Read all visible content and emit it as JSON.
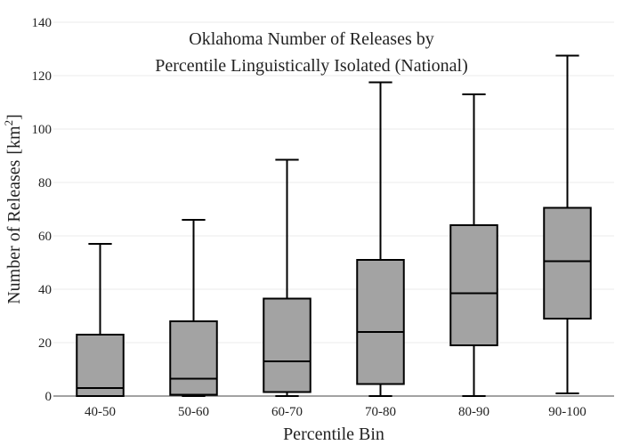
{
  "chart_data": {
    "type": "box",
    "title_line1": "Oklahoma Number of Releases by",
    "title_line2": "Percentile Linguistically Isolated (National)",
    "xlabel": "Percentile Bin",
    "ylabel_main": "Number of Releases",
    "ylabel_unit_prefix": "[km",
    "ylabel_unit_sup": "2",
    "ylabel_unit_suffix": "]",
    "ylim": [
      0,
      140
    ],
    "yticks": [
      0,
      20,
      40,
      60,
      80,
      100,
      120,
      140
    ],
    "grid": true,
    "box_color": "#a3a3a3",
    "categories": [
      "40-50",
      "50-60",
      "60-70",
      "70-80",
      "80-90",
      "90-100"
    ],
    "boxes": [
      {
        "min": 0,
        "q1": 0,
        "median": 3,
        "q3": 23,
        "max": 57
      },
      {
        "min": 0,
        "q1": 0.5,
        "median": 6.5,
        "q3": 28,
        "max": 66
      },
      {
        "min": 0,
        "q1": 1.5,
        "median": 13,
        "q3": 36.5,
        "max": 88.5
      },
      {
        "min": 0,
        "q1": 4.5,
        "median": 24,
        "q3": 51,
        "max": 117.5
      },
      {
        "min": 0,
        "q1": 19,
        "median": 38.5,
        "q3": 64,
        "max": 113
      },
      {
        "min": 1,
        "q1": 29,
        "median": 50.5,
        "q3": 70.5,
        "max": 127.5
      }
    ]
  }
}
